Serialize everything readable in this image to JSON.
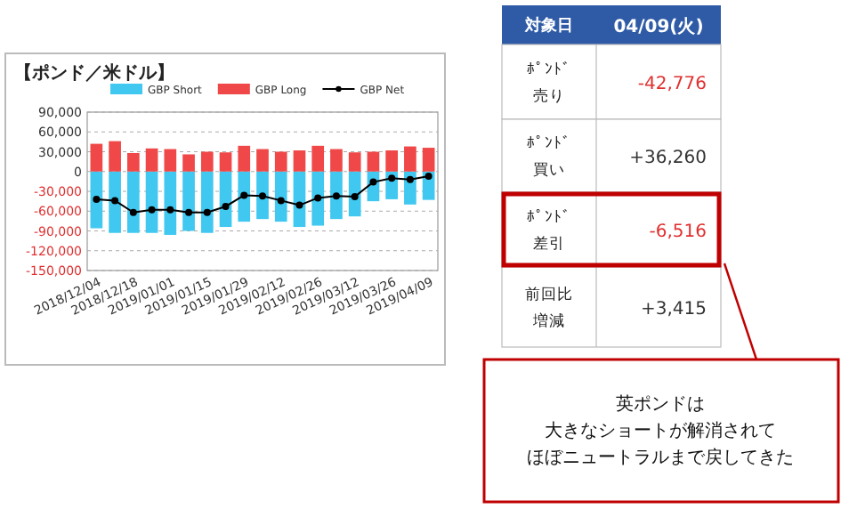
{
  "chart_data": [
    {
      "type": "bar",
      "title": "【ポンド／米ドル】",
      "stacked": true,
      "categories": [
        "2018/12/04",
        null,
        "2018/12/18",
        null,
        "2019/01/01",
        null,
        "2019/01/15",
        null,
        "2019/01/29",
        null,
        "2019/02/12",
        null,
        "2019/02/26",
        null,
        "2019/03/12",
        null,
        "2019/03/26",
        null,
        "2019/04/09"
      ],
      "series": [
        {
          "name": "GBP Short",
          "color": "#40c8f0",
          "values": [
            -86000,
            -93000,
            -93000,
            -93000,
            -96000,
            -90000,
            -93000,
            -84000,
            -76000,
            -72000,
            -76000,
            -84000,
            -82000,
            -72000,
            -68000,
            -45000,
            -42000,
            -50000,
            -43000
          ]
        },
        {
          "name": "GBP Long",
          "color": "#f04848",
          "values": [
            42000,
            46000,
            28000,
            35000,
            34000,
            26000,
            30000,
            29000,
            39000,
            34000,
            30000,
            32000,
            39000,
            34000,
            29000,
            30000,
            32000,
            38000,
            36000
          ]
        },
        {
          "name": "GBP Net",
          "type": "line",
          "color": "#000000",
          "marker": "circle",
          "values": [
            -42000,
            -44000,
            -62000,
            -58000,
            -58000,
            -62000,
            -62000,
            -53000,
            -36000,
            -37000,
            -44000,
            -51000,
            -40000,
            -37000,
            -38000,
            -16000,
            -10000,
            -12000,
            -7000
          ]
        }
      ],
      "ylim": [
        -150000,
        90000
      ],
      "yticks": [
        {
          "value": 90000,
          "label": "90,000"
        },
        {
          "value": 60000,
          "label": "60,000"
        },
        {
          "value": 30000,
          "label": "30,000"
        },
        0,
        {
          "value": -30000,
          "label": "-30,000"
        },
        {
          "value": -60000,
          "label": "-60,000"
        },
        {
          "value": -90000,
          "label": "-90,000"
        },
        {
          "value": -120000,
          "label": "-120,000"
        },
        {
          "value": -150000,
          "label": "-150,000"
        }
      ],
      "grid": "y",
      "legend": "top"
    },
    {
      "type": "other",
      "annotations": [
        "対象日",
        null,
        "04/09(火)",
        "ﾎﾟﾝﾄﾞ",
        "売り",
        "-42,776",
        "ﾎﾟﾝﾄﾞ",
        "買い",
        "+36,260",
        "ﾎﾟﾝﾄﾞ",
        "差引",
        "-6,516",
        "前回比",
        "増減",
        "+3,415",
        "英ポンドは",
        "大きなショートが解消されて",
        "ほぼニュートラルまで戻してきた"
      ]
    }
  ]
}
